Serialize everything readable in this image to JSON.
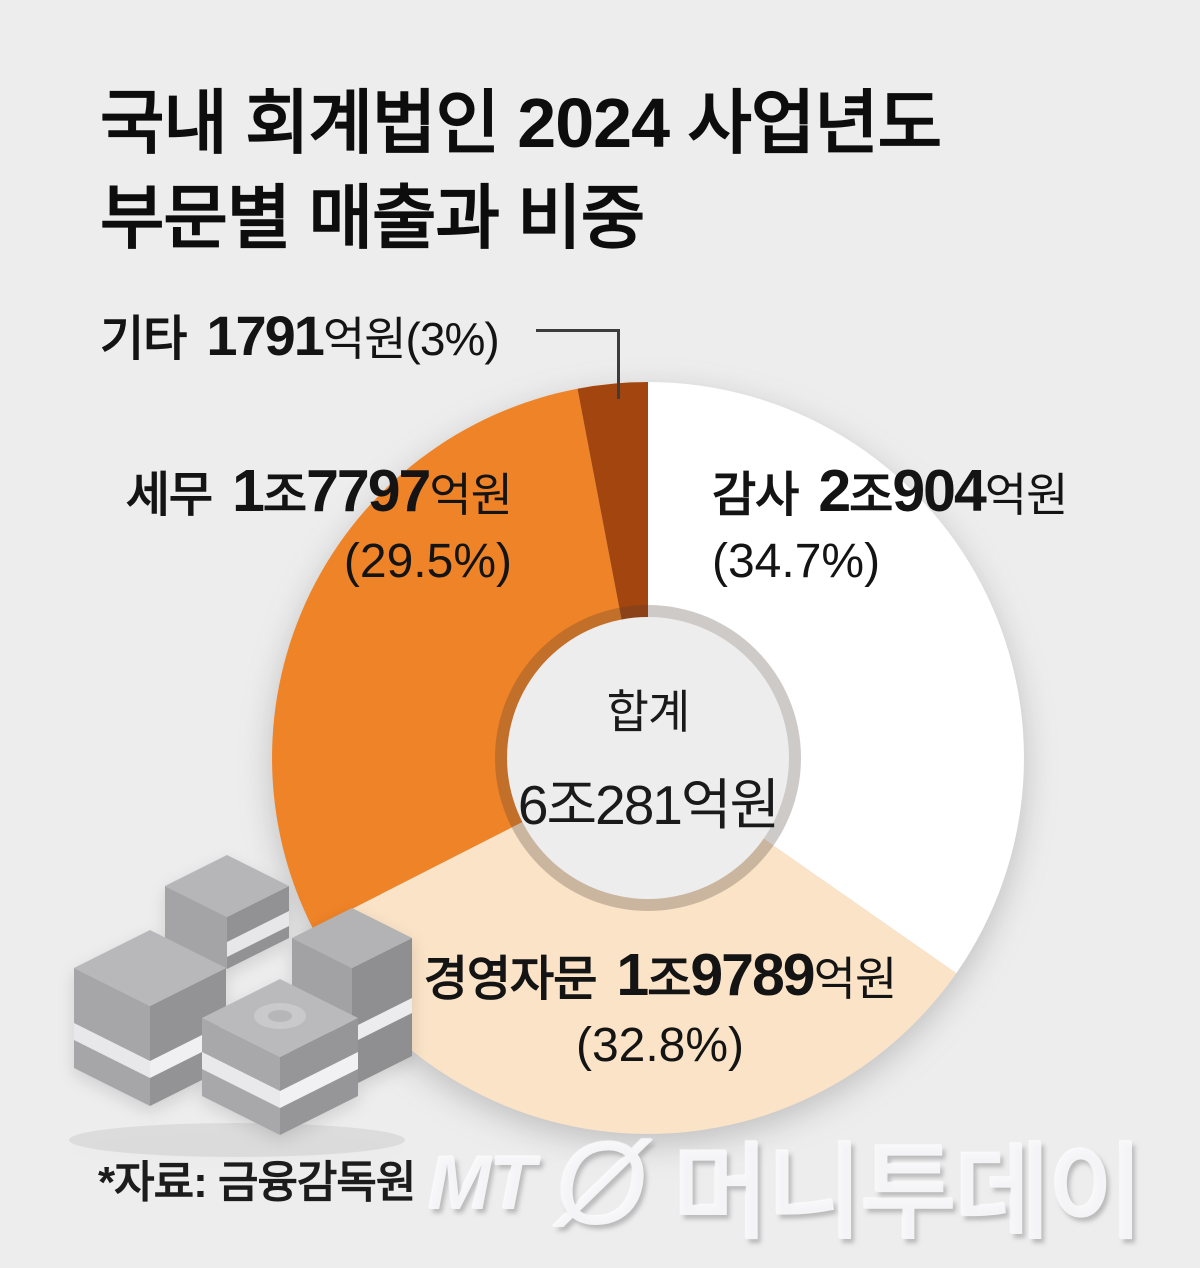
{
  "title": {
    "line1": "국내 회계법인 2024 사업년도",
    "line2": "부문별 매출과 비중"
  },
  "chart_data": {
    "type": "pie",
    "subtype": "donut",
    "title": "국내 회계법인 2024 사업년도 부문별 매출과 비중",
    "unit": "억원",
    "center": {
      "label": "합계",
      "value": "6조281억원"
    },
    "segments": [
      {
        "name": "감사",
        "value": "2조904억원",
        "percent": 34.7,
        "color": "#ffffff"
      },
      {
        "name": "경영자문",
        "value": "1조9789억원",
        "percent": 32.8,
        "color": "#fae3c7"
      },
      {
        "name": "세무",
        "value": "1조7797억원",
        "percent": 29.5,
        "color": "#ef8327"
      },
      {
        "name": "기타",
        "value": "1791억원",
        "percent": 3.0,
        "color": "#a3450e"
      }
    ],
    "start_angle_deg": 0,
    "direction": "clockwise",
    "legend_position": "labels-around-donut",
    "source": "*자료: 금융감독원"
  },
  "labels": {
    "gita": {
      "name": "기타",
      "value": "1791",
      "suffix": "억원(3%)"
    },
    "semu": {
      "name": "세무",
      "d1": "1",
      "u1": "조",
      "d2": "7797",
      "suffix": "억원",
      "pct": "(29.5%)"
    },
    "gamsa": {
      "name": "감사",
      "d1": "2",
      "u1": "조",
      "d2": "904",
      "suffix": "억원",
      "pct": "(34.7%)"
    },
    "consult": {
      "name": "경영자문",
      "d1": "1",
      "u1": "조",
      "d2": "9789",
      "suffix": "억원",
      "pct": "(32.8%)"
    }
  },
  "footer": {
    "source_note": "*자료: 금융감독원",
    "watermark_mt": "MT",
    "watermark_logo_glyph": "Ø",
    "watermark_name": "머니투데이"
  }
}
